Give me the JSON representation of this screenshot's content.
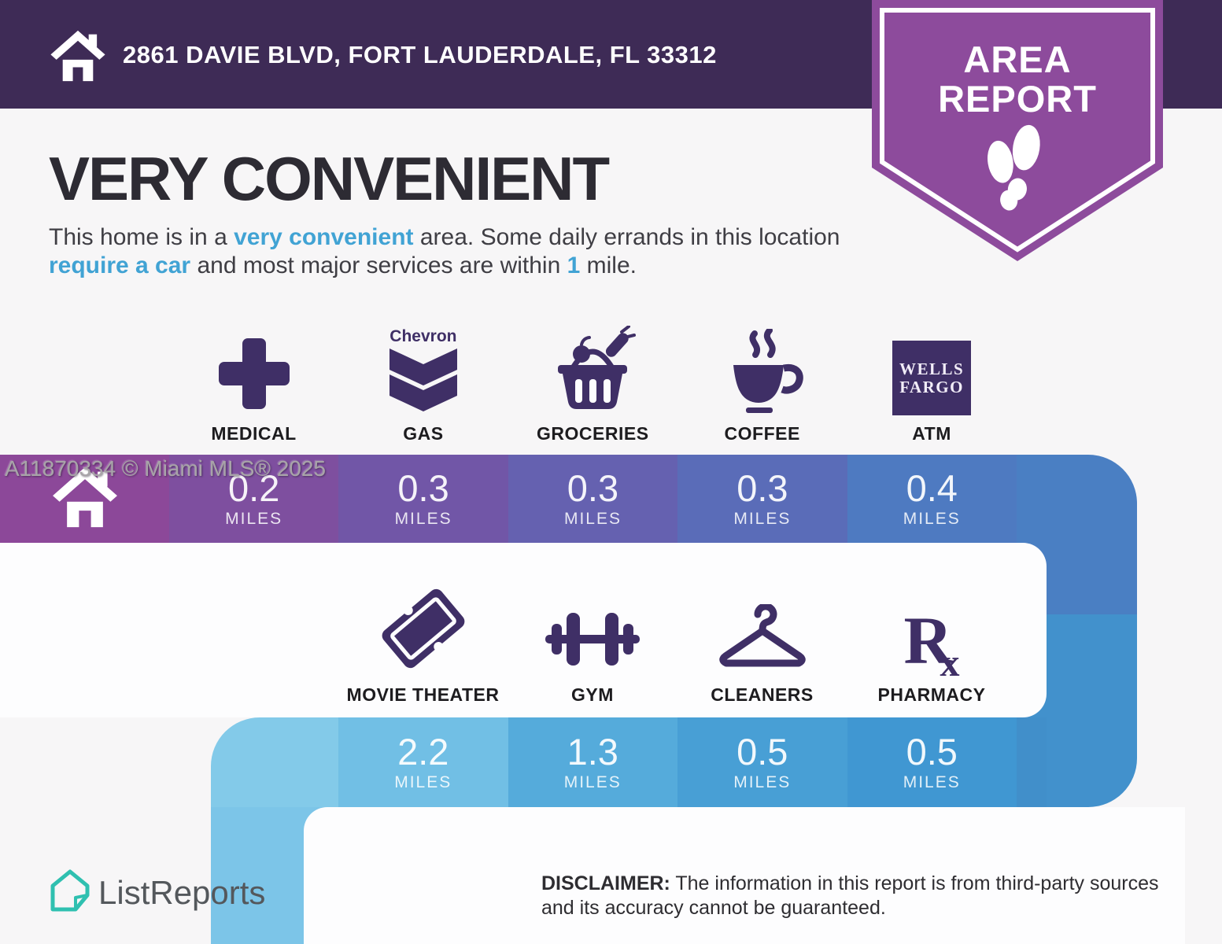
{
  "header": {
    "address": "2861 DAVIE BLVD, FORT LAUDERDALE, FL 33312"
  },
  "badge": {
    "line1": "AREA",
    "line2": "REPORT"
  },
  "headline": {
    "title": "VERY CONVENIENT",
    "description_parts": [
      {
        "text": "This home is in a ",
        "em": false
      },
      {
        "text": "very convenient",
        "em": true
      },
      {
        "text": " area. Some daily errands in this location ",
        "em": false
      },
      {
        "text": "require a car",
        "em": true
      },
      {
        "text": " and most major services are within ",
        "em": false
      },
      {
        "text": "1",
        "em": true
      },
      {
        "text": " mile.",
        "em": false
      }
    ]
  },
  "watermark": "A11870334 © Miami MLS® 2025",
  "amenities_row1": [
    {
      "name": "medical",
      "label": "MEDICAL",
      "icon": "medical-cross-icon",
      "distance": "0.2",
      "unit": "MILES",
      "cell_color": "#7e4f9f"
    },
    {
      "name": "gas",
      "label": "GAS",
      "icon": "chevron-gas-icon",
      "brand": "Chevron",
      "distance": "0.3",
      "unit": "MILES",
      "cell_color": "#7156a7"
    },
    {
      "name": "groceries",
      "label": "GROCERIES",
      "icon": "grocery-basket-icon",
      "distance": "0.3",
      "unit": "MILES",
      "cell_color": "#6561b0"
    },
    {
      "name": "coffee",
      "label": "COFFEE",
      "icon": "coffee-cup-icon",
      "distance": "0.3",
      "unit": "MILES",
      "cell_color": "#5a6cb8"
    },
    {
      "name": "atm",
      "label": "ATM",
      "icon": "wells-fargo-icon",
      "brand_lines": [
        "WELLS",
        "FARGO"
      ],
      "distance": "0.4",
      "unit": "MILES",
      "cell_color": "#4e7ac1"
    }
  ],
  "amenities_row2": [
    {
      "name": "movie-theater",
      "label": "MOVIE THEATER",
      "icon": "movie-ticket-icon",
      "distance": "2.2",
      "unit": "MILES",
      "cell_color": "#71bfe5"
    },
    {
      "name": "gym",
      "label": "GYM",
      "icon": "dumbbell-icon",
      "distance": "1.3",
      "unit": "MILES",
      "cell_color": "#55abdb"
    },
    {
      "name": "cleaners",
      "label": "CLEANERS",
      "icon": "hanger-icon",
      "distance": "0.5",
      "unit": "MILES",
      "cell_color": "#489fd5"
    },
    {
      "name": "pharmacy",
      "label": "PHARMACY",
      "icon": "rx-icon",
      "glyphs": [
        "R",
        "x"
      ],
      "distance": "0.5",
      "unit": "MILES",
      "cell_color": "#4097d2"
    }
  ],
  "footer": {
    "brand": "ListReports",
    "disclaimer_label": "DISCLAIMER:",
    "disclaimer_text": " The information in this report is from third-party sources and its accuracy cannot be guaranteed."
  },
  "colors": {
    "header_bg": "#3e2b56",
    "page_bg": "#f7f6f7",
    "card_bg": "#fdfdfe",
    "badge_purple": "#8d4b9c",
    "icon_purple": "#3f2f66",
    "title_text": "#2d2b33",
    "body_text": "#3f3e44",
    "accent_blue": "#41a3d4",
    "home_cell": "#8c4899",
    "band1_turn": "#4a7fc3",
    "right_column_top": "#4a7fc3",
    "right_column_bottom": "#4291cc",
    "band2_lead": "#83cae9",
    "band2_turn": "#418fca",
    "left_column_top": "#83cae9",
    "left_column_bottom": "#7cc5e8",
    "watermark_text": "#a8a4a8",
    "logo_teal": "#2fc0b0",
    "logo_text": "#54585c"
  }
}
